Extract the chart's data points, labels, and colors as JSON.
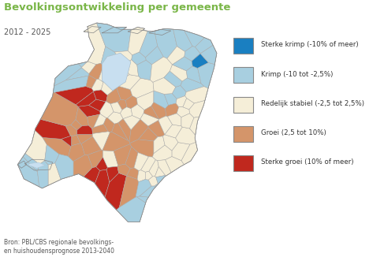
{
  "title": "Bevolkingsontwikkeling per gemeente",
  "subtitle": "2012 - 2025",
  "source": "Bron: PBL/CBS regionale bevolkings-\nen huishoudensprognose 2013-2040",
  "title_color": "#7ab648",
  "subtitle_color": "#555555",
  "source_color": "#555555",
  "background_color": "#ffffff",
  "legend_items": [
    {
      "label": "Sterke krimp (-10% of meer)",
      "color": "#1a7fc1"
    },
    {
      "label": "Krimp (-10 tot -2,5%)",
      "color": "#a8cfe0"
    },
    {
      "label": "Redelijk stabiel (-2,5 tot 2,5%)",
      "color": "#f5eed8"
    },
    {
      "label": "Groei (2,5 tot 10%)",
      "color": "#d4956a"
    },
    {
      "label": "Sterke groei (10% of meer)",
      "color": "#c0281e"
    }
  ],
  "figsize": [
    4.87,
    3.26
  ],
  "dpi": 100,
  "lon_min": 3.2,
  "lon_max": 7.45,
  "lat_min": 50.68,
  "lat_max": 53.62
}
